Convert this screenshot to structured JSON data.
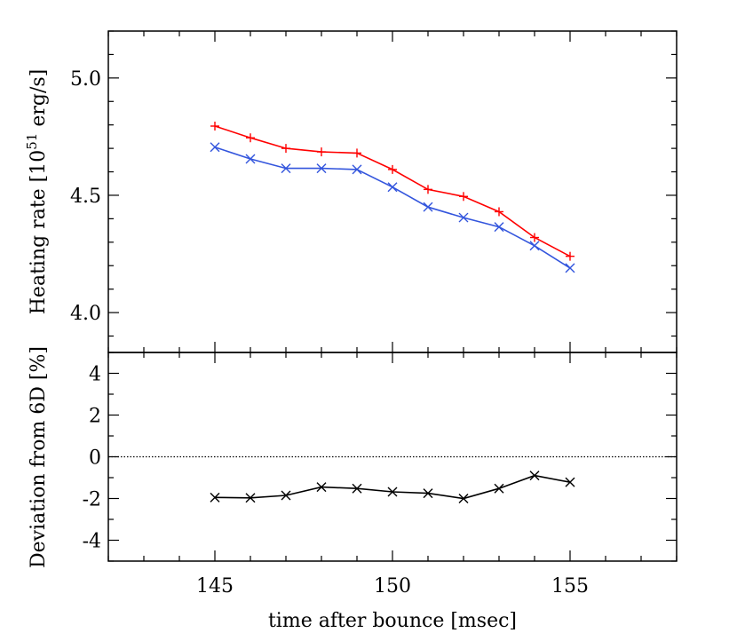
{
  "chart_data": [
    {
      "type": "line",
      "panel": "top",
      "ylabel": "Heating rate [10",
      "ylabel_exponent": "51",
      "ylabel_suffix": " erg/s]",
      "xlim": [
        142,
        158
      ],
      "ylim": [
        3.83,
        5.2
      ],
      "yticks": [
        4.0,
        4.5,
        5.0
      ],
      "ytick_labels": [
        "4.0",
        "4.5",
        "5.0"
      ],
      "x": [
        145,
        146,
        147,
        148,
        149,
        150,
        151,
        152,
        153,
        154,
        155
      ],
      "series": [
        {
          "color": "#ff0000",
          "marker": "plus",
          "values": [
            4.795,
            4.745,
            4.7,
            4.685,
            4.68,
            4.61,
            4.525,
            4.495,
            4.43,
            4.32,
            4.24
          ]
        },
        {
          "color": "#3355dd",
          "marker": "x",
          "values": [
            4.705,
            4.655,
            4.615,
            4.615,
            4.61,
            4.535,
            4.45,
            4.405,
            4.365,
            4.285,
            4.19
          ]
        }
      ]
    },
    {
      "type": "line",
      "panel": "bottom",
      "ylabel": "Deviation from 6D [%]",
      "xlabel": "time after bounce [msec]",
      "xlim": [
        142,
        158
      ],
      "ylim": [
        -5,
        5
      ],
      "yticks": [
        -4,
        -2,
        0,
        2,
        4
      ],
      "ytick_labels": [
        "-4",
        "-2",
        "0",
        "2",
        "4"
      ],
      "xticks": [
        145,
        150,
        155
      ],
      "xtick_labels": [
        "145",
        "150",
        "155"
      ],
      "reference_line": 0,
      "x": [
        145,
        146,
        147,
        148,
        149,
        150,
        151,
        152,
        153,
        154,
        155
      ],
      "series": [
        {
          "color": "#000000",
          "marker": "x",
          "values": [
            -1.95,
            -1.97,
            -1.85,
            -1.45,
            -1.52,
            -1.68,
            -1.75,
            -2.0,
            -1.52,
            -0.9,
            -1.22
          ]
        }
      ]
    }
  ]
}
